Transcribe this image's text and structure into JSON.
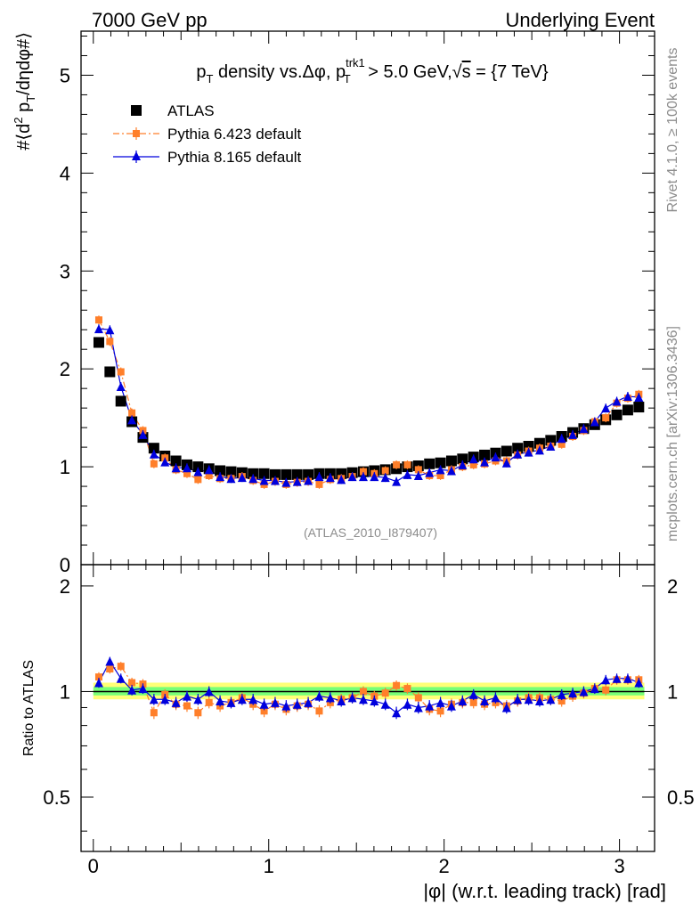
{
  "header": {
    "left": "7000 GeV pp",
    "right": "Underlying Event"
  },
  "side_texts": {
    "rivet": "Rivet 4.1.0, ≥ 100k events",
    "mcplots": "mcplots.cern.ch [arXiv:1306.3436]"
  },
  "chart_data": [
    {
      "type": "scatter",
      "title": "p_T density vs.Δφ, p_T^trk1 > 5.0 GeV,√s = {7 TeV}",
      "title_parts": {
        "a": "p",
        "a_sub": "T",
        "b": " density vs.Δφ, p",
        "b_sub": "T",
        "b_sup": "trk1",
        "c": " > 5.0 GeV,",
        "sqrt": "√",
        "s": "s",
        "d": " = {7 TeV}"
      },
      "ylabel": "#⟨d² p_T/dηdφ#⟩",
      "ylabel_parts": {
        "a": "#⟨d",
        "sup": "2",
        "b": " p",
        "sub": "T",
        "c": "/dηdφ#⟩"
      },
      "analysis_label": "(ATLAS_2010_I879407)",
      "xlim": [
        -0.07,
        3.2
      ],
      "ylim": [
        0,
        5.45
      ],
      "yticks": [
        0,
        1,
        2,
        3,
        4,
        5
      ],
      "ytick_labels": [
        "0",
        "1",
        "2",
        "3",
        "4",
        "5"
      ],
      "legend_position": "top-left",
      "x": [
        0.0314,
        0.0942,
        0.1571,
        0.2199,
        0.2827,
        0.3456,
        0.4084,
        0.4712,
        0.5341,
        0.5969,
        0.6597,
        0.7226,
        0.7854,
        0.8482,
        0.9111,
        0.9739,
        1.0367,
        1.0996,
        1.1624,
        1.2252,
        1.2881,
        1.3509,
        1.4137,
        1.4765,
        1.5394,
        1.6022,
        1.665,
        1.7279,
        1.7907,
        1.8535,
        1.9164,
        1.9792,
        2.042,
        2.1049,
        2.1677,
        2.2305,
        2.2934,
        2.3562,
        2.419,
        2.4819,
        2.5447,
        2.6075,
        2.6704,
        2.7332,
        2.796,
        2.8588,
        2.9217,
        2.9845,
        3.0473,
        3.1102
      ],
      "series": [
        {
          "name": "ATLAS",
          "color": "#000000",
          "marker": "square",
          "values": [
            2.27,
            1.97,
            1.67,
            1.46,
            1.3,
            1.19,
            1.11,
            1.06,
            1.02,
            1.0,
            0.98,
            0.96,
            0.95,
            0.94,
            0.93,
            0.93,
            0.92,
            0.92,
            0.92,
            0.92,
            0.93,
            0.93,
            0.93,
            0.94,
            0.95,
            0.96,
            0.97,
            0.98,
            1.0,
            1.01,
            1.03,
            1.04,
            1.06,
            1.08,
            1.1,
            1.12,
            1.14,
            1.16,
            1.19,
            1.21,
            1.24,
            1.27,
            1.31,
            1.35,
            1.39,
            1.43,
            1.48,
            1.53,
            1.58,
            1.61
          ]
        },
        {
          "name": "Pythia 6.423 default",
          "color": "#ff7f2a",
          "marker": "square",
          "line": "dashdot",
          "values": [
            2.5,
            2.28,
            1.97,
            1.55,
            1.37,
            1.03,
            1.09,
            0.97,
            0.93,
            0.87,
            0.91,
            0.88,
            0.88,
            0.9,
            0.86,
            0.82,
            0.85,
            0.82,
            0.84,
            0.85,
            0.82,
            0.87,
            0.88,
            0.9,
            0.95,
            0.93,
            0.96,
            1.02,
            1.02,
            0.97,
            0.91,
            0.91,
            0.97,
            1.0,
            1.02,
            1.03,
            1.06,
            1.06,
            1.12,
            1.16,
            1.19,
            1.21,
            1.23,
            1.31,
            1.37,
            1.46,
            1.5,
            1.65,
            1.7,
            1.74
          ]
        },
        {
          "name": "Pythia 8.165 default",
          "color": "#0000dd",
          "marker": "triangle",
          "line": "solid",
          "values": [
            2.41,
            2.4,
            1.82,
            1.48,
            1.33,
            1.13,
            1.05,
            0.99,
            0.99,
            0.95,
            0.97,
            0.9,
            0.88,
            0.89,
            0.88,
            0.86,
            0.86,
            0.84,
            0.85,
            0.86,
            0.9,
            0.89,
            0.87,
            0.9,
            0.9,
            0.9,
            0.89,
            0.85,
            0.92,
            0.91,
            0.94,
            0.97,
            0.96,
            1.02,
            1.08,
            1.05,
            1.1,
            1.04,
            1.13,
            1.15,
            1.17,
            1.21,
            1.29,
            1.33,
            1.39,
            1.46,
            1.6,
            1.67,
            1.72,
            1.71
          ]
        }
      ],
      "errors": {
        "ATLAS": 0.02,
        "Pythia 6.423 default": 0.045,
        "Pythia 8.165 default": 0.045
      }
    },
    {
      "type": "scatter",
      "ylabel": "Ratio to ATLAS",
      "xlabel": "|φ| (w.r.t. leading track) [rad]",
      "xlim": [
        -0.07,
        3.2
      ],
      "ylim": [
        0.35,
        2.3
      ],
      "yticks": [
        0.5,
        1,
        2
      ],
      "ytick_labels": [
        "0.5",
        "1",
        "2"
      ],
      "xticks": [
        0,
        1,
        2,
        3
      ],
      "xtick_labels": [
        "0",
        "1",
        "2",
        "3"
      ],
      "bands": [
        {
          "name": "total uncertainty",
          "color": "#ffff77",
          "low": 0.95,
          "high": 1.06
        },
        {
          "name": "stat uncertainty",
          "color": "#77ff77",
          "low": 0.975,
          "high": 1.03
        }
      ],
      "series": [
        {
          "name": "Pythia 6.423 default",
          "color": "#ff7f2a",
          "values": [
            1.1,
            1.16,
            1.18,
            1.06,
            1.05,
            0.87,
            0.98,
            0.92,
            0.91,
            0.87,
            0.93,
            0.91,
            0.93,
            0.96,
            0.92,
            0.88,
            0.92,
            0.89,
            0.91,
            0.92,
            0.88,
            0.93,
            0.95,
            0.96,
            1.0,
            0.97,
            0.99,
            1.04,
            1.02,
            0.96,
            0.89,
            0.88,
            0.92,
            0.93,
            0.93,
            0.92,
            0.93,
            0.91,
            0.94,
            0.96,
            0.96,
            0.95,
            0.94,
            0.97,
            0.99,
            1.02,
            1.01,
            1.08,
            1.08,
            1.08
          ]
        },
        {
          "name": "Pythia 8.165 default",
          "color": "#0000dd",
          "values": [
            1.06,
            1.22,
            1.09,
            1.01,
            1.02,
            0.95,
            0.95,
            0.93,
            0.97,
            0.95,
            1.0,
            0.94,
            0.93,
            0.95,
            0.95,
            0.92,
            0.93,
            0.91,
            0.92,
            0.93,
            0.97,
            0.96,
            0.94,
            0.96,
            0.95,
            0.94,
            0.92,
            0.87,
            0.92,
            0.9,
            0.91,
            0.93,
            0.91,
            0.94,
            0.98,
            0.94,
            0.96,
            0.9,
            0.95,
            0.95,
            0.94,
            0.95,
            0.98,
            0.99,
            1.0,
            1.02,
            1.08,
            1.09,
            1.09,
            1.06
          ]
        }
      ],
      "errors": 0.035
    }
  ],
  "legend": {
    "atlas": "ATLAS",
    "py6": "Pythia 6.423 default",
    "py8": "Pythia 8.165 default"
  }
}
